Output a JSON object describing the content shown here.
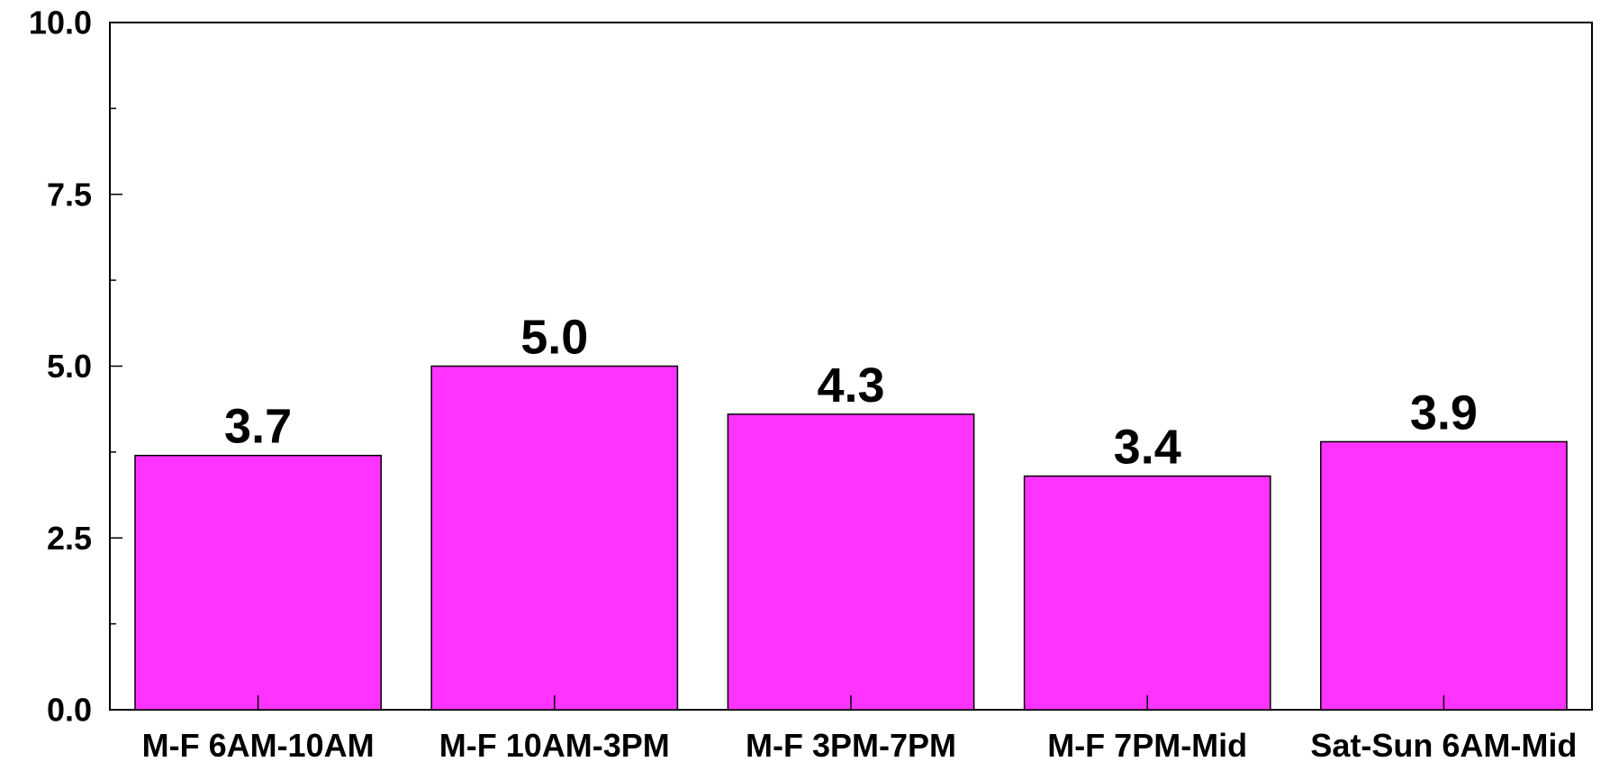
{
  "chart_data": {
    "type": "bar",
    "categories": [
      "M-F 6AM-10AM",
      "M-F 10AM-3PM",
      "M-F 3PM-7PM",
      "M-F 7PM-Mid",
      "Sat-Sun 6AM-Mid"
    ],
    "values": [
      3.7,
      5.0,
      4.3,
      3.4,
      3.9
    ],
    "data_labels": [
      "3.7",
      "5.0",
      "4.3",
      "3.4",
      "3.9"
    ],
    "ylim": [
      0,
      10
    ],
    "y_ticks": [
      0,
      2.5,
      5,
      7.5,
      10
    ],
    "y_tick_labels": [
      "0.0",
      "2.5",
      "5.0",
      "7.5",
      "10.0"
    ],
    "grid": false,
    "bar_color": "#FF33FF",
    "title": "",
    "xlabel": "",
    "ylabel": ""
  }
}
